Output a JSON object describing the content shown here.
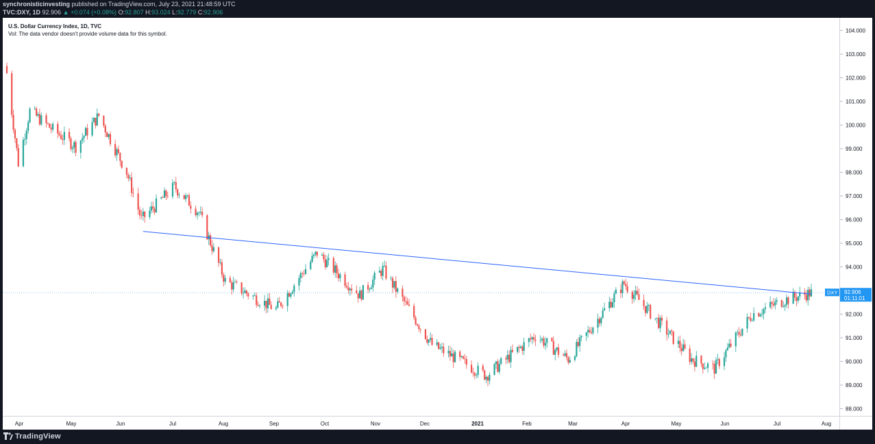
{
  "header": {
    "author": "synchronisticinvesting",
    "published_text": "published on TradingView.com, July 23, 2021 21:48:59 UTC",
    "symbol": "TVC:DXY, 1D",
    "last": "92.906",
    "change": "▲ +0.074 (+0.08%)",
    "o_label": "O:",
    "o": "92.807",
    "h_label": "H:",
    "h": "93.024",
    "l_label": "L:",
    "l": "92.779",
    "c_label": "C:",
    "c": "92.906"
  },
  "legend": {
    "title": "U.S. Dollar Currency Index, 1D, TVC",
    "volume_note": "Vol: The data vendor doesn't provide volume data for this symbol."
  },
  "price_label": {
    "symbol": "DXY",
    "price": "92.906",
    "countdown": "01:11:01"
  },
  "footer": {
    "brand": "TradingView"
  },
  "colors": {
    "up": "#26a69a",
    "down": "#ef5350",
    "trendline": "#2962ff",
    "label": "#2196f3"
  },
  "chart_data": {
    "type": "candlestick",
    "title": "U.S. Dollar Currency Index, 1D, TVC",
    "ylim": [
      88.0,
      104.0
    ],
    "y_ticks": [
      "88.000",
      "89.000",
      "90.000",
      "91.000",
      "92.000",
      "93.000",
      "94.000",
      "95.000",
      "96.000",
      "97.000",
      "98.000",
      "99.000",
      "100.000",
      "101.000",
      "102.000",
      "103.000",
      "104.000"
    ],
    "x_ticks": [
      "Apr",
      "May",
      "Jun",
      "Jul",
      "Aug",
      "Sep",
      "Oct",
      "Nov",
      "Dec",
      "2021",
      "Feb",
      "Mar",
      "Apr",
      "May",
      "Jun",
      "Jul",
      "Aug"
    ],
    "x_tick_bold": [
      false,
      false,
      false,
      false,
      false,
      false,
      false,
      false,
      false,
      true,
      false,
      false,
      false,
      false,
      false,
      false,
      false
    ],
    "period": "2020-03-20 to 2021-07-23 (daily)",
    "approx_closes": [
      {
        "date": "2020-03-20",
        "close": 102.2
      },
      {
        "date": "2020-03-27",
        "close": 98.4
      },
      {
        "date": "2020-04-03",
        "close": 100.6
      },
      {
        "date": "2020-04-17",
        "close": 99.8
      },
      {
        "date": "2020-05-01",
        "close": 99.1
      },
      {
        "date": "2020-05-15",
        "close": 100.4
      },
      {
        "date": "2020-06-01",
        "close": 98.0
      },
      {
        "date": "2020-06-10",
        "close": 96.0
      },
      {
        "date": "2020-06-30",
        "close": 97.4
      },
      {
        "date": "2020-07-15",
        "close": 96.3
      },
      {
        "date": "2020-07-31",
        "close": 93.4
      },
      {
        "date": "2020-08-31",
        "close": 92.2
      },
      {
        "date": "2020-09-25",
        "close": 94.6
      },
      {
        "date": "2020-10-21",
        "close": 92.8
      },
      {
        "date": "2020-11-04",
        "close": 93.9
      },
      {
        "date": "2020-12-04",
        "close": 90.7
      },
      {
        "date": "2021-01-06",
        "close": 89.4
      },
      {
        "date": "2021-02-05",
        "close": 91.1
      },
      {
        "date": "2021-02-25",
        "close": 90.1
      },
      {
        "date": "2021-03-31",
        "close": 93.3
      },
      {
        "date": "2021-05-11",
        "close": 90.1
      },
      {
        "date": "2021-05-25",
        "close": 89.7
      },
      {
        "date": "2021-06-17",
        "close": 92.0
      },
      {
        "date": "2021-07-07",
        "close": 92.6
      },
      {
        "date": "2021-07-23",
        "close": 92.906
      }
    ],
    "trendline": {
      "from": {
        "date": "2020-06-11",
        "price": 95.5
      },
      "to": {
        "date": "2021-07-23",
        "price": 92.85
      }
    }
  }
}
